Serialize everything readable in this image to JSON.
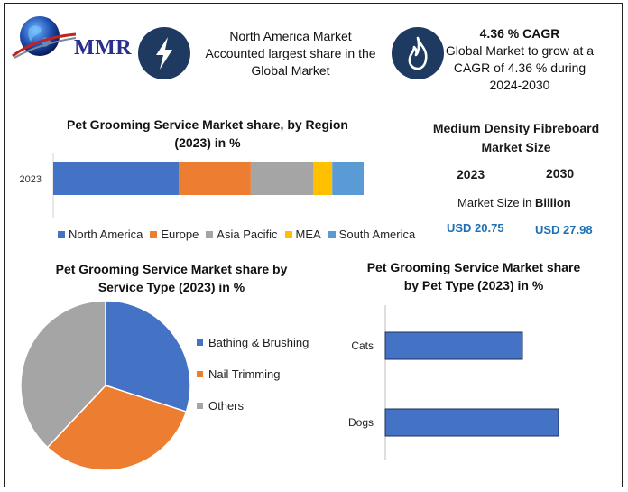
{
  "brand": {
    "logo_text": "MMR"
  },
  "header": {
    "na_text": "North America Market Accounted largest share in the Global Market",
    "cagr_title": "4.36 % CAGR",
    "cagr_text": "Global Market to grow at a CAGR of 4.36 % during 2024-2030"
  },
  "colors": {
    "north_america": "#4472c4",
    "europe": "#ed7d31",
    "asia_pacific": "#a5a5a5",
    "mea": "#ffc000",
    "south_america": "#5b9bd5",
    "badge": "#1f3a60"
  },
  "mdf": {
    "title": "Medium Density Fibreboard Market Size",
    "year1": "2023",
    "year2": "2030",
    "size_label": "Market Size in ",
    "size_unit": "Billion",
    "value1": "USD 20.75",
    "value2": "USD 27.98"
  },
  "chart_data": [
    {
      "type": "bar",
      "orientation": "horizontal-stacked",
      "title": "Pet Grooming Service Market share, by Region (2023) in %",
      "categories": [
        "2023"
      ],
      "series": [
        {
          "name": "North America",
          "values": [
            40
          ]
        },
        {
          "name": "Europe",
          "values": [
            23
          ]
        },
        {
          "name": "Asia Pacific",
          "values": [
            20
          ]
        },
        {
          "name": "MEA",
          "values": [
            6
          ]
        },
        {
          "name": "South America",
          "values": [
            10
          ]
        }
      ],
      "legend": "bottom"
    },
    {
      "type": "pie",
      "title": "Pet Grooming Service Market share by Service Type (2023) in %",
      "labels": [
        "Bathing & Brushing",
        "Nail Trimming",
        "Others"
      ],
      "values": [
        30,
        32,
        38
      ],
      "legend": "right"
    },
    {
      "type": "bar",
      "orientation": "horizontal",
      "title": "Pet Grooming Service Market share by Pet Type (2023) in %",
      "categories": [
        "Cats",
        "Dogs"
      ],
      "values": [
        38,
        48
      ],
      "xlim": [
        0,
        50
      ]
    }
  ]
}
